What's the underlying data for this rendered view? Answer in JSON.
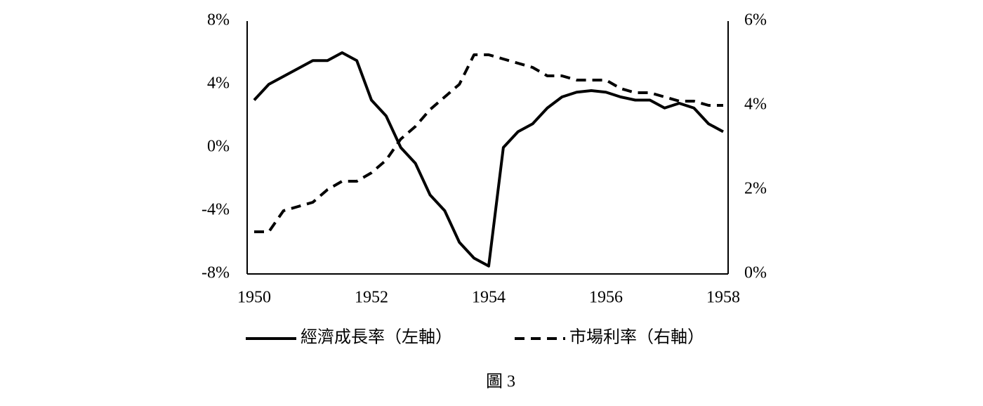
{
  "chart_data": {
    "type": "line",
    "caption": "圖 3",
    "x": [
      1950,
      1950.25,
      1950.5,
      1950.75,
      1951,
      1951.25,
      1951.5,
      1951.75,
      1952,
      1952.25,
      1952.5,
      1952.75,
      1953,
      1953.25,
      1953.5,
      1953.75,
      1954,
      1954.25,
      1954.5,
      1954.75,
      1955,
      1955.25,
      1955.5,
      1955.75,
      1956,
      1956.25,
      1956.5,
      1956.75,
      1957,
      1957.25,
      1957.5,
      1957.75,
      1958
    ],
    "series": [
      {
        "name": "經濟成長率（左軸）",
        "color": "#000000",
        "line_style": "solid",
        "values": [
          3.0,
          4.0,
          4.5,
          5.0,
          5.5,
          5.5,
          6.0,
          5.5,
          3.0,
          2.0,
          0,
          -1,
          -3,
          -4,
          -6,
          -7,
          -7.5,
          0,
          1.0,
          1.5,
          2.5,
          3.2,
          3.5,
          3.6,
          3.5,
          3.2,
          3.0,
          3.0,
          2.5,
          2.8,
          2.5,
          1.5,
          1.0
        ]
      },
      {
        "name": "市場利率（右軸）",
        "color": "#000000",
        "line_style": "dashed",
        "axis": "y2",
        "values": [
          1.0,
          1.0,
          1.5,
          1.6,
          1.7,
          2.0,
          2.2,
          2.2,
          2.4,
          2.7,
          3.2,
          3.5,
          3.9,
          4.2,
          4.5,
          5.2,
          5.2,
          5.1,
          5.0,
          4.9,
          4.7,
          4.7,
          4.6,
          4.6,
          4.6,
          4.4,
          4.3,
          4.3,
          4.2,
          4.1,
          4.1,
          4.0,
          4.0
        ]
      }
    ],
    "xlim": [
      1950,
      1958
    ],
    "xticks": [
      1950,
      1952,
      1954,
      1956,
      1958
    ],
    "ylim": [
      -8,
      8
    ],
    "yticks": [
      {
        "value": -8,
        "label": "-8%"
      },
      {
        "value": -4,
        "label": "-4%"
      },
      {
        "value": 0,
        "label": "0%"
      },
      {
        "value": 4,
        "label": "4%"
      },
      {
        "value": 8,
        "label": "8%"
      }
    ],
    "y2lim": [
      0,
      6
    ],
    "y2ticks": [
      {
        "value": 0,
        "label": "0%"
      },
      {
        "value": 2,
        "label": "2%"
      },
      {
        "value": 4,
        "label": "4%"
      },
      {
        "value": 6,
        "label": "6%"
      }
    ],
    "grid": false,
    "legend": "bottom"
  }
}
